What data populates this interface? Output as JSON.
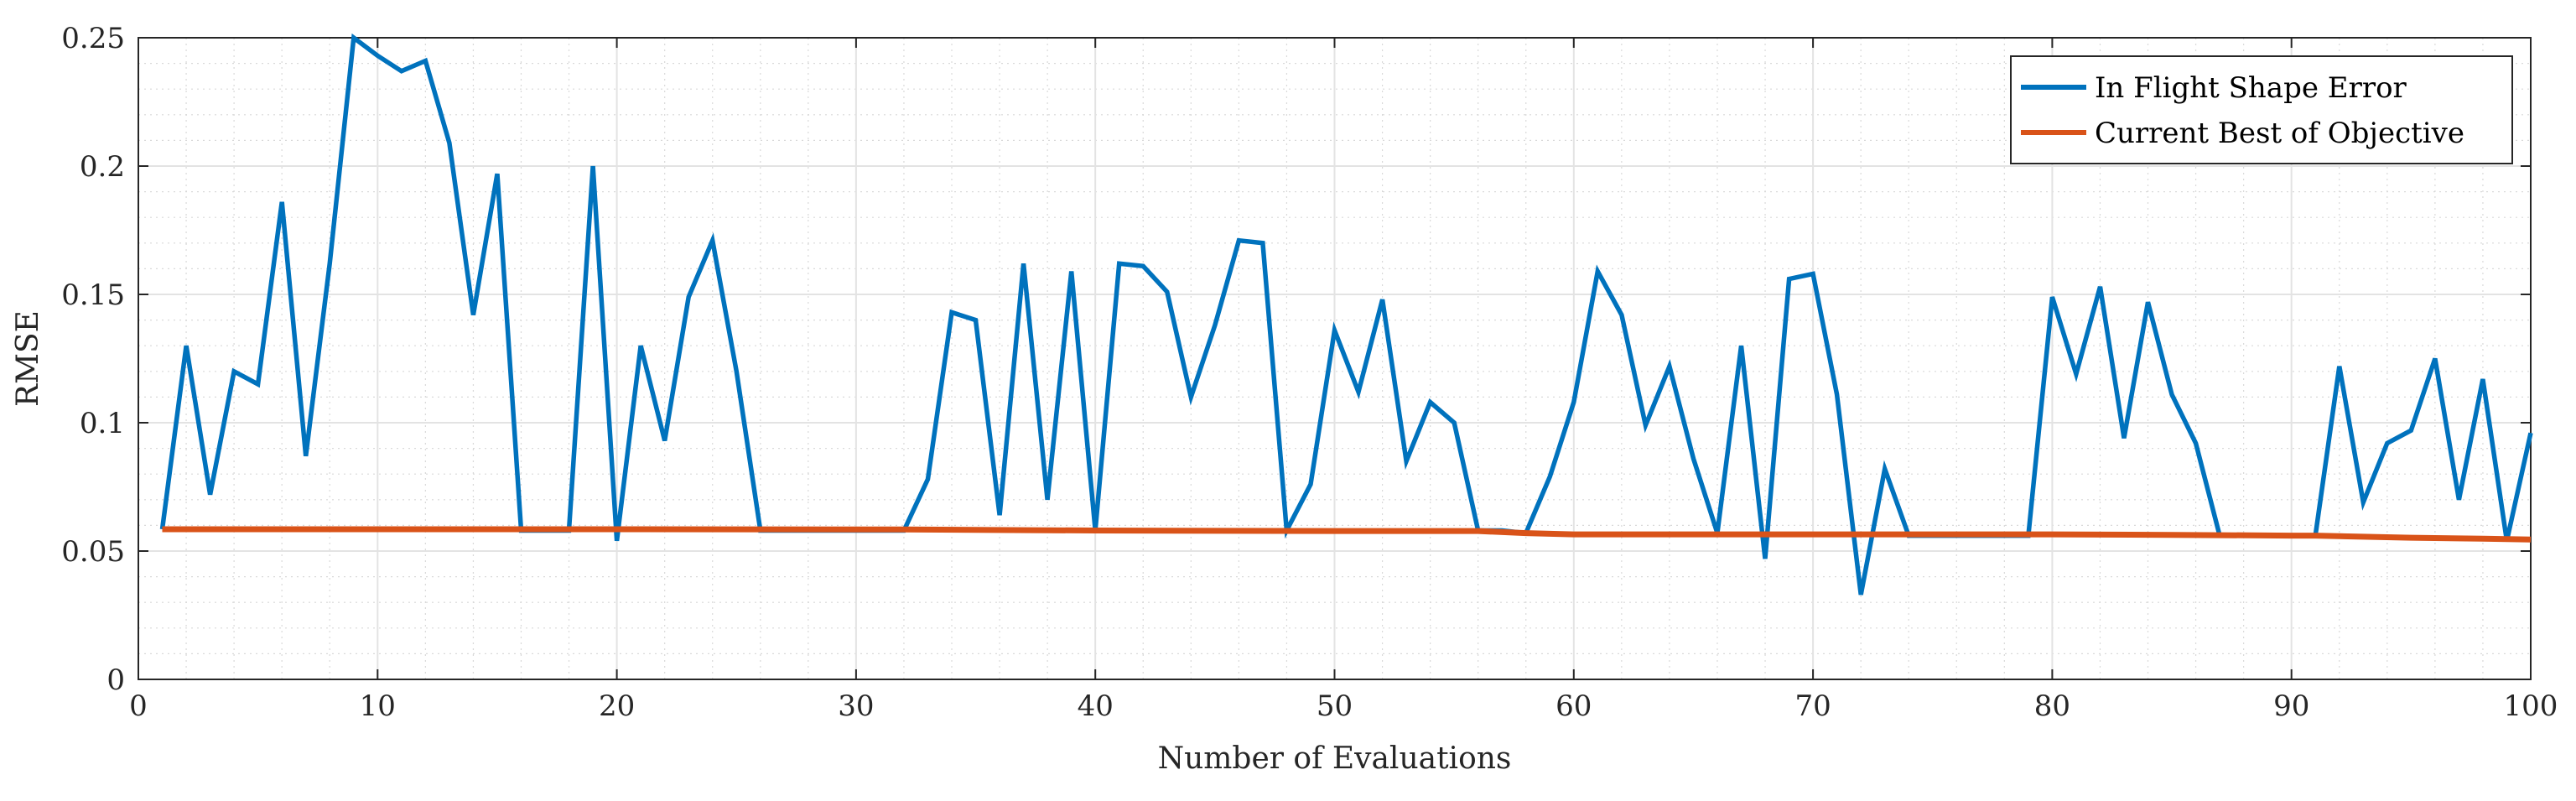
{
  "chart_data": {
    "type": "line",
    "xlabel": "Number of Evaluations",
    "ylabel": "RMSE",
    "xlim": [
      0,
      100
    ],
    "ylim": [
      0,
      0.25
    ],
    "xticks": [
      "0",
      "10",
      "20",
      "30",
      "40",
      "50",
      "60",
      "70",
      "80",
      "90",
      "100"
    ],
    "yticks": [
      "0",
      "0.05",
      "0.1",
      "0.15",
      "0.2",
      "0.25"
    ],
    "grid": true,
    "minor_grid": true,
    "legend_position": "top-right",
    "series": [
      {
        "name": "In Flight Shape Error",
        "color": "#0072BD",
        "x": [
          1,
          2,
          3,
          4,
          5,
          6,
          7,
          8,
          9,
          10,
          11,
          12,
          13,
          14,
          15,
          16,
          17,
          18,
          19,
          20,
          21,
          22,
          23,
          24,
          25,
          26,
          27,
          28,
          29,
          30,
          31,
          32,
          33,
          34,
          35,
          36,
          37,
          38,
          39,
          40,
          41,
          42,
          43,
          44,
          45,
          46,
          47,
          48,
          49,
          50,
          51,
          52,
          53,
          54,
          55,
          56,
          57,
          58,
          59,
          60,
          61,
          62,
          63,
          64,
          65,
          66,
          67,
          68,
          69,
          70,
          71,
          72,
          73,
          74,
          75,
          76,
          77,
          78,
          79,
          80,
          81,
          82,
          83,
          84,
          85,
          86,
          87,
          88,
          89,
          90,
          91,
          92,
          93,
          94,
          95,
          96,
          97,
          98,
          99,
          100
        ],
        "y": [
          0.0585,
          0.13,
          0.072,
          0.12,
          0.115,
          0.186,
          0.087,
          0.162,
          0.25,
          0.243,
          0.237,
          0.241,
          0.209,
          0.142,
          0.197,
          0.058,
          0.058,
          0.058,
          0.2,
          0.054,
          0.13,
          0.093,
          0.149,
          0.171,
          0.12,
          0.058,
          0.058,
          0.058,
          0.058,
          0.058,
          0.058,
          0.058,
          0.078,
          0.143,
          0.14,
          0.064,
          0.162,
          0.07,
          0.159,
          0.058,
          0.162,
          0.161,
          0.151,
          0.11,
          0.138,
          0.171,
          0.17,
          0.058,
          0.076,
          0.136,
          0.112,
          0.148,
          0.085,
          0.108,
          0.1,
          0.058,
          0.058,
          0.057,
          0.079,
          0.108,
          0.159,
          0.142,
          0.099,
          0.122,
          0.086,
          0.057,
          0.13,
          0.047,
          0.156,
          0.158,
          0.111,
          0.033,
          0.082,
          0.056,
          0.056,
          0.056,
          0.056,
          0.056,
          0.056,
          0.149,
          0.119,
          0.153,
          0.094,
          0.147,
          0.111,
          0.092,
          0.056,
          0.056,
          0.056,
          0.056,
          0.056,
          0.122,
          0.069,
          0.092,
          0.097,
          0.125,
          0.07,
          0.117,
          0.054,
          0.096
        ]
      },
      {
        "name": "Current Best of Objective",
        "color": "#D95319",
        "x": [
          1,
          10,
          20,
          30,
          32,
          40,
          50,
          56,
          58,
          60,
          70,
          80,
          85,
          90,
          91,
          92,
          95,
          98,
          100
        ],
        "y": [
          0.0585,
          0.0585,
          0.0585,
          0.0584,
          0.0584,
          0.058,
          0.0578,
          0.0578,
          0.057,
          0.0565,
          0.0565,
          0.0565,
          0.0563,
          0.056,
          0.056,
          0.0558,
          0.0552,
          0.0548,
          0.0545
        ]
      }
    ]
  }
}
